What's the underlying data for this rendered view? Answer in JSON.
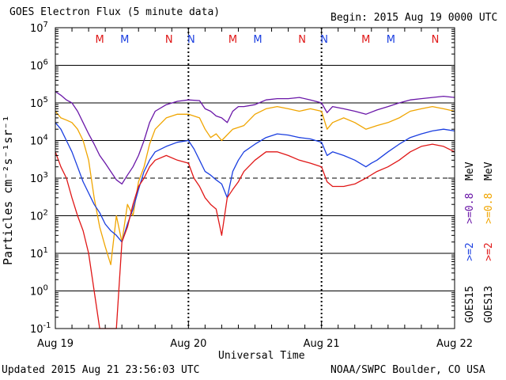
{
  "header": {
    "title": "GOES Electron Flux (5 minute data)",
    "begin": "Begin: 2015 Aug 19 0000 UTC"
  },
  "footer": {
    "updated": "Updated 2015 Aug 21 23:56:03 UTC",
    "credit": "NOAA/SWPC Boulder, CO USA"
  },
  "colors": {
    "goes15_gt2": "#1a3ee0",
    "goes15_gt08": "#6a17a8",
    "goes13_gt2": "#e01717",
    "goes13_gt08": "#f0a500",
    "marker_M": "#e01717",
    "marker_M_alt": "#1a3ee0",
    "marker_N": "#e01717",
    "marker_N_alt": "#1a3ee0"
  },
  "legend": {
    "g15_label": "GOES15",
    "g15_gt2": ">=2",
    "g15_gt08": ">=0.8",
    "g13_label": "GOES13",
    "g13_gt2": ">=2",
    "g13_gt08": ">=0.8",
    "unit": "MeV"
  },
  "chart_data": {
    "type": "line",
    "title": "GOES Electron Flux (5 minute data)",
    "xlabel": "Universal Time",
    "ylabel": "Particles cm⁻²s⁻¹sr⁻¹",
    "y_scale": "log",
    "ylim": [
      0.1,
      10000000
    ],
    "y_ticks": [
      {
        "value": 0.1,
        "base": "10",
        "exp": "-1"
      },
      {
        "value": 1,
        "base": "10",
        "exp": "0"
      },
      {
        "value": 10,
        "base": "10",
        "exp": "1"
      },
      {
        "value": 100,
        "base": "10",
        "exp": "2"
      },
      {
        "value": 1000,
        "base": "10",
        "exp": "3"
      },
      {
        "value": 10000,
        "base": "10",
        "exp": "4"
      },
      {
        "value": 100000,
        "base": "10",
        "exp": "5"
      },
      {
        "value": 1000000,
        "base": "10",
        "exp": "6"
      },
      {
        "value": 10000000,
        "base": "10",
        "exp": "7"
      }
    ],
    "dashed_threshold": 1000,
    "xlim_hours": [
      0,
      72
    ],
    "x_ticks": [
      {
        "hour": 0,
        "label": "Aug 19"
      },
      {
        "hour": 24,
        "label": "Aug 20"
      },
      {
        "hour": 48,
        "label": "Aug 21"
      },
      {
        "hour": 72,
        "label": "Aug 22"
      }
    ],
    "day_markers": [
      {
        "hour": 8,
        "label": "M",
        "satellite": "GOES13"
      },
      {
        "hour": 12.5,
        "label": "M",
        "satellite": "GOES15"
      },
      {
        "hour": 20.5,
        "label": "N",
        "satellite": "GOES13"
      },
      {
        "hour": 24.5,
        "label": "N",
        "satellite": "GOES15"
      },
      {
        "hour": 32,
        "label": "M",
        "satellite": "GOES13"
      },
      {
        "hour": 36.5,
        "label": "M",
        "satellite": "GOES15"
      },
      {
        "hour": 44.5,
        "label": "N",
        "satellite": "GOES13"
      },
      {
        "hour": 48.5,
        "label": "N",
        "satellite": "GOES15"
      },
      {
        "hour": 56,
        "label": "M",
        "satellite": "GOES13"
      },
      {
        "hour": 60.5,
        "label": "M",
        "satellite": "GOES15"
      },
      {
        "hour": 68.5,
        "label": "N",
        "satellite": "GOES13"
      },
      {
        "hour": 72.5,
        "label": "N",
        "satellite": "GOES15"
      }
    ],
    "series": [
      {
        "name": "GOES15 >=0.8 MeV",
        "color": "#6a17a8",
        "points": [
          [
            0,
            200000
          ],
          [
            1,
            160000
          ],
          [
            2,
            120000
          ],
          [
            3,
            100000
          ],
          [
            4,
            60000
          ],
          [
            5,
            30000
          ],
          [
            6,
            15000
          ],
          [
            7,
            8000
          ],
          [
            8,
            4000
          ],
          [
            9,
            2500
          ],
          [
            10,
            1500
          ],
          [
            11,
            900
          ],
          [
            12,
            700
          ],
          [
            13,
            1200
          ],
          [
            14,
            2000
          ],
          [
            15,
            4000
          ],
          [
            16,
            10000
          ],
          [
            17,
            30000
          ],
          [
            18,
            60000
          ],
          [
            20,
            90000
          ],
          [
            22,
            110000
          ],
          [
            24,
            120000
          ],
          [
            26,
            115000
          ],
          [
            27,
            70000
          ],
          [
            28,
            60000
          ],
          [
            29,
            45000
          ],
          [
            30,
            40000
          ],
          [
            31,
            30000
          ],
          [
            32,
            60000
          ],
          [
            33,
            80000
          ],
          [
            34,
            80000
          ],
          [
            36,
            90000
          ],
          [
            38,
            120000
          ],
          [
            40,
            130000
          ],
          [
            42,
            130000
          ],
          [
            44,
            140000
          ],
          [
            46,
            120000
          ],
          [
            48,
            100000
          ],
          [
            49,
            55000
          ],
          [
            50,
            80000
          ],
          [
            52,
            70000
          ],
          [
            54,
            60000
          ],
          [
            56,
            50000
          ],
          [
            58,
            65000
          ],
          [
            60,
            80000
          ],
          [
            62,
            100000
          ],
          [
            64,
            120000
          ],
          [
            66,
            130000
          ],
          [
            68,
            140000
          ],
          [
            70,
            150000
          ],
          [
            72,
            140000
          ]
        ]
      },
      {
        "name": "GOES13 >=0.8 MeV",
        "color": "#f0a500",
        "points": [
          [
            0,
            60000
          ],
          [
            1,
            40000
          ],
          [
            2,
            35000
          ],
          [
            3,
            30000
          ],
          [
            4,
            20000
          ],
          [
            5,
            10000
          ],
          [
            6,
            3000
          ],
          [
            7,
            300
          ],
          [
            8,
            50
          ],
          [
            9,
            15
          ],
          [
            10,
            5
          ],
          [
            11,
            100
          ],
          [
            12,
            20
          ],
          [
            13,
            200
          ],
          [
            14,
            100
          ],
          [
            15,
            800
          ],
          [
            16,
            2000
          ],
          [
            17,
            8000
          ],
          [
            18,
            20000
          ],
          [
            20,
            40000
          ],
          [
            22,
            50000
          ],
          [
            24,
            50000
          ],
          [
            26,
            40000
          ],
          [
            27,
            20000
          ],
          [
            28,
            12000
          ],
          [
            29,
            15000
          ],
          [
            30,
            10000
          ],
          [
            32,
            20000
          ],
          [
            34,
            25000
          ],
          [
            36,
            50000
          ],
          [
            38,
            70000
          ],
          [
            40,
            80000
          ],
          [
            42,
            70000
          ],
          [
            44,
            60000
          ],
          [
            46,
            70000
          ],
          [
            48,
            60000
          ],
          [
            49,
            20000
          ],
          [
            50,
            30000
          ],
          [
            52,
            40000
          ],
          [
            54,
            30000
          ],
          [
            56,
            20000
          ],
          [
            58,
            25000
          ],
          [
            60,
            30000
          ],
          [
            62,
            40000
          ],
          [
            64,
            60000
          ],
          [
            66,
            70000
          ],
          [
            68,
            80000
          ],
          [
            70,
            70000
          ],
          [
            72,
            60000
          ]
        ]
      },
      {
        "name": "GOES15 >=2 MeV",
        "color": "#1a3ee0",
        "points": [
          [
            0,
            30000
          ],
          [
            1,
            20000
          ],
          [
            2,
            10000
          ],
          [
            3,
            5000
          ],
          [
            4,
            2000
          ],
          [
            5,
            800
          ],
          [
            6,
            400
          ],
          [
            7,
            200
          ],
          [
            8,
            120
          ],
          [
            9,
            60
          ],
          [
            10,
            40
          ],
          [
            11,
            30
          ],
          [
            12,
            20
          ],
          [
            13,
            60
          ],
          [
            14,
            150
          ],
          [
            15,
            500
          ],
          [
            16,
            1500
          ],
          [
            17,
            3000
          ],
          [
            18,
            5000
          ],
          [
            20,
            7000
          ],
          [
            22,
            9000
          ],
          [
            24,
            10000
          ],
          [
            25,
            6000
          ],
          [
            26,
            3000
          ],
          [
            27,
            1500
          ],
          [
            28,
            1200
          ],
          [
            29,
            900
          ],
          [
            30,
            700
          ],
          [
            31,
            300
          ],
          [
            32,
            1500
          ],
          [
            33,
            3000
          ],
          [
            34,
            5000
          ],
          [
            36,
            8000
          ],
          [
            38,
            12000
          ],
          [
            40,
            15000
          ],
          [
            42,
            14000
          ],
          [
            44,
            12000
          ],
          [
            46,
            11000
          ],
          [
            48,
            9000
          ],
          [
            49,
            4000
          ],
          [
            50,
            5000
          ],
          [
            52,
            4000
          ],
          [
            54,
            3000
          ],
          [
            56,
            2000
          ],
          [
            57,
            2500
          ],
          [
            58,
            3000
          ],
          [
            60,
            5000
          ],
          [
            62,
            8000
          ],
          [
            64,
            12000
          ],
          [
            66,
            15000
          ],
          [
            68,
            18000
          ],
          [
            70,
            20000
          ],
          [
            72,
            18000
          ]
        ]
      },
      {
        "name": "GOES13 >=2 MeV",
        "color": "#e01717",
        "points": [
          [
            0,
            5000
          ],
          [
            1,
            2000
          ],
          [
            2,
            1000
          ],
          [
            3,
            300
          ],
          [
            4,
            100
          ],
          [
            5,
            40
          ],
          [
            6,
            10
          ],
          [
            7,
            1
          ],
          [
            8,
            0.1
          ],
          [
            9,
            0.1
          ],
          [
            10,
            0.1
          ],
          [
            11,
            0.1
          ],
          [
            12,
            20
          ],
          [
            13,
            50
          ],
          [
            14,
            200
          ],
          [
            15,
            600
          ],
          [
            16,
            1000
          ],
          [
            17,
            2000
          ],
          [
            18,
            3000
          ],
          [
            20,
            4000
          ],
          [
            22,
            3000
          ],
          [
            24,
            2500
          ],
          [
            25,
            1000
          ],
          [
            26,
            600
          ],
          [
            27,
            300
          ],
          [
            28,
            200
          ],
          [
            29,
            150
          ],
          [
            30,
            30
          ],
          [
            31,
            300
          ],
          [
            32,
            500
          ],
          [
            33,
            800
          ],
          [
            34,
            1500
          ],
          [
            36,
            3000
          ],
          [
            38,
            5000
          ],
          [
            40,
            5000
          ],
          [
            42,
            4000
          ],
          [
            44,
            3000
          ],
          [
            46,
            2500
          ],
          [
            48,
            2000
          ],
          [
            49,
            800
          ],
          [
            50,
            600
          ],
          [
            52,
            600
          ],
          [
            54,
            700
          ],
          [
            56,
            1000
          ],
          [
            58,
            1500
          ],
          [
            60,
            2000
          ],
          [
            62,
            3000
          ],
          [
            64,
            5000
          ],
          [
            66,
            7000
          ],
          [
            68,
            8000
          ],
          [
            70,
            7000
          ],
          [
            72,
            5000
          ]
        ]
      }
    ]
  }
}
